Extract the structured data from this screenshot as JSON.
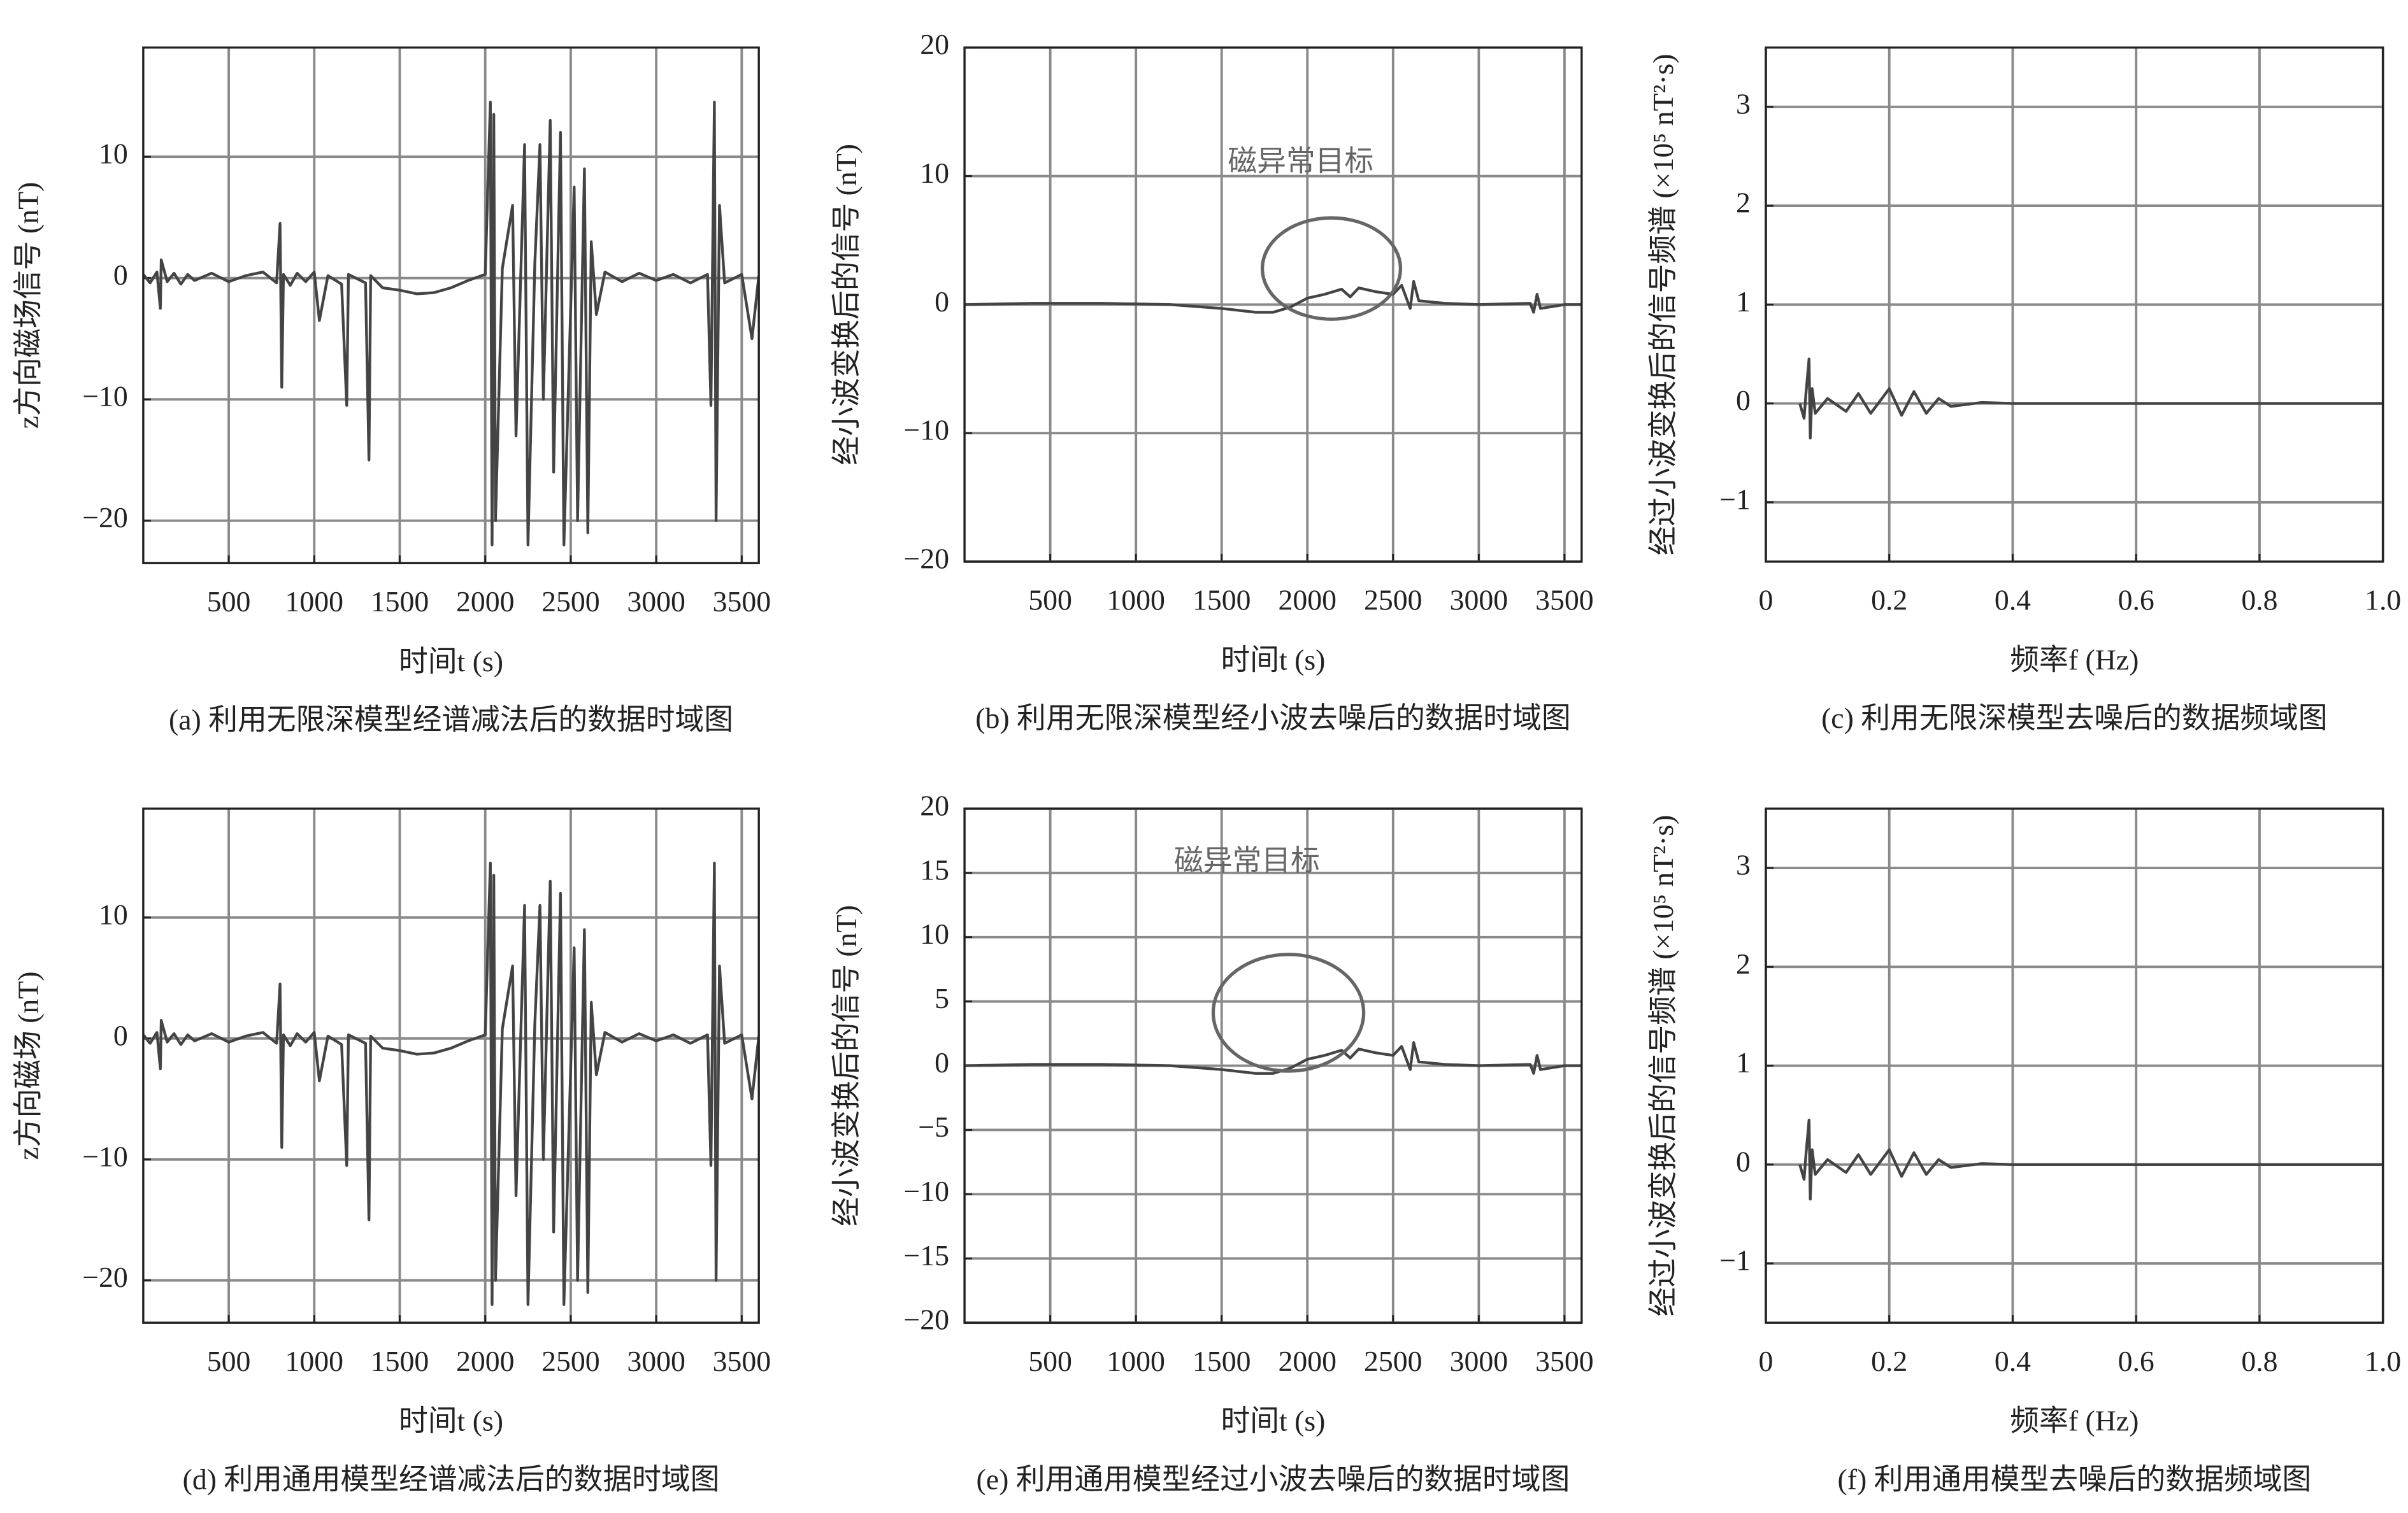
{
  "chart_data": [
    {
      "type": "line",
      "caption": "(a) 利用无限深模型经谱减法后的数据时域图",
      "xlabel": "时间t (s)",
      "ylabel": "z方向磁场信号 (nT)",
      "xlim": [
        0,
        3600
      ],
      "xticks": [
        500,
        1000,
        1500,
        2000,
        2500,
        3000,
        3500
      ],
      "ylim": [
        -23.5,
        19
      ],
      "yticks": [
        {
          "value": -20,
          "label": "−20"
        },
        {
          "value": -10,
          "label": "−10"
        },
        0,
        10
      ],
      "grid": true,
      "series": [
        {
          "color": "#444444",
          "x": [
            0,
            40,
            80,
            100,
            105,
            140,
            180,
            220,
            260,
            300,
            400,
            500,
            600,
            700,
            780,
            800,
            810,
            820,
            860,
            900,
            950,
            1000,
            1030,
            1080,
            1160,
            1190,
            1200,
            1300,
            1320,
            1330,
            1400,
            1500,
            1600,
            1700,
            1800,
            1900,
            2000,
            2030,
            2040,
            2050,
            2060,
            2100,
            2160,
            2180,
            2230,
            2250,
            2290,
            2320,
            2340,
            2380,
            2400,
            2440,
            2460,
            2520,
            2540,
            2580,
            2600,
            2620,
            2650,
            2700,
            2800,
            2900,
            3000,
            3100,
            3200,
            3300,
            3320,
            3340,
            3350,
            3370,
            3400,
            3500,
            3560,
            3600
          ],
          "values": [
            0.3,
            -0.4,
            0.5,
            -2.5,
            1.5,
            -0.3,
            0.4,
            -0.5,
            0.3,
            -0.2,
            0.4,
            -0.3,
            0.2,
            0.5,
            -0.4,
            4.5,
            -9,
            0.3,
            -0.6,
            0.4,
            -0.3,
            0.5,
            -3.5,
            0.2,
            -0.5,
            -10.5,
            0.3,
            -0.4,
            -15,
            0.2,
            -0.8,
            -1,
            -1.3,
            -1.2,
            -0.8,
            -0.2,
            0.3,
            14.5,
            -22,
            13.5,
            -20,
            0.8,
            6,
            -13,
            11,
            -22,
            1.2,
            11,
            -10,
            13,
            -16,
            12,
            -22,
            7.5,
            -20,
            9,
            -21,
            3,
            -3,
            0.5,
            -0.3,
            0.4,
            -0.2,
            0.3,
            -0.4,
            0.3,
            -10.5,
            14.5,
            -20,
            6,
            -0.4,
            0.3,
            -5,
            0.2
          ]
        }
      ]
    },
    {
      "type": "line",
      "caption": "(b) 利用无限深模型经小波去噪后的数据时域图",
      "xlabel": "时间t (s)",
      "ylabel": "经小波变换后的信号 (nT)",
      "annotation": "磁异常目标",
      "xlim": [
        0,
        3600
      ],
      "xticks": [
        500,
        1000,
        1500,
        2000,
        2500,
        3000,
        3500
      ],
      "ylim": [
        -20,
        20
      ],
      "yticks": [
        {
          "value": -20,
          "label": "−20"
        },
        {
          "value": -10,
          "label": "−10"
        },
        0,
        10,
        20
      ],
      "grid": true,
      "series": [
        {
          "color": "#444444",
          "x": [
            0,
            400,
            800,
            1200,
            1500,
            1700,
            1800,
            1900,
            2000,
            2100,
            2200,
            2250,
            2300,
            2400,
            2500,
            2550,
            2600,
            2620,
            2650,
            2800,
            3000,
            3300,
            3320,
            3340,
            3360,
            3500,
            3600
          ],
          "values": [
            0,
            0.1,
            0.1,
            0,
            -0.3,
            -0.6,
            -0.6,
            -0.2,
            0.5,
            0.8,
            1.2,
            0.6,
            1.3,
            1,
            0.8,
            1.5,
            -0.3,
            1.8,
            0.3,
            0.1,
            0,
            0.1,
            -0.6,
            0.8,
            -0.3,
            0,
            0
          ]
        }
      ]
    },
    {
      "type": "line",
      "caption": "(c) 利用无限深模型去噪后的数据频域图",
      "xlabel": "频率f (Hz)",
      "ylabel": "经过小波变换后的信号频谱 (×10⁵ nT²·s)",
      "xlim": [
        0,
        1
      ],
      "xticks": [
        0,
        0.2,
        0.4,
        0.6,
        0.8,
        {
          "value": 1,
          "label": "1.0"
        }
      ],
      "ylim": [
        -1.6,
        3.6
      ],
      "yticks": [
        {
          "value": -1,
          "label": "−1"
        },
        0,
        1,
        2,
        3
      ],
      "grid": true,
      "series": [
        {
          "color": "#444444",
          "x": [
            0.055,
            0.062,
            0.065,
            0.07,
            0.072,
            0.075,
            0.08,
            0.1,
            0.13,
            0.15,
            0.17,
            0.2,
            0.22,
            0.24,
            0.26,
            0.28,
            0.3,
            0.35,
            0.4,
            1
          ],
          "values": [
            0,
            -0.15,
            0.1,
            0.45,
            -0.35,
            0.15,
            -0.1,
            0.05,
            -0.08,
            0.1,
            -0.1,
            0.15,
            -0.12,
            0.12,
            -0.1,
            0.05,
            -0.03,
            0.01,
            0,
            0
          ]
        }
      ]
    },
    {
      "type": "line",
      "caption": "(d) 利用通用模型经谱减法后的数据时域图",
      "xlabel": "时间t (s)",
      "ylabel": "z方向磁场 (nT)",
      "xlim": [
        0,
        3600
      ],
      "xticks": [
        500,
        1000,
        1500,
        2000,
        2500,
        3000,
        3500
      ],
      "ylim": [
        -23.5,
        19
      ],
      "yticks": [
        {
          "value": -20,
          "label": "−20"
        },
        {
          "value": -10,
          "label": "−10"
        },
        0,
        10
      ],
      "grid": true,
      "series": [
        {
          "color": "#444444",
          "x": [
            0,
            40,
            80,
            100,
            105,
            140,
            180,
            220,
            260,
            300,
            400,
            500,
            600,
            700,
            780,
            800,
            810,
            820,
            860,
            900,
            950,
            1000,
            1030,
            1080,
            1160,
            1190,
            1200,
            1300,
            1320,
            1330,
            1400,
            1500,
            1600,
            1700,
            1800,
            1900,
            2000,
            2030,
            2040,
            2050,
            2060,
            2100,
            2160,
            2180,
            2230,
            2250,
            2290,
            2320,
            2340,
            2380,
            2400,
            2440,
            2460,
            2520,
            2540,
            2580,
            2600,
            2620,
            2650,
            2700,
            2800,
            2900,
            3000,
            3100,
            3200,
            3300,
            3320,
            3340,
            3350,
            3370,
            3400,
            3500,
            3560,
            3600
          ],
          "values": [
            0.3,
            -0.4,
            0.5,
            -2.5,
            1.5,
            -0.3,
            0.4,
            -0.5,
            0.3,
            -0.2,
            0.4,
            -0.3,
            0.2,
            0.5,
            -0.4,
            4.5,
            -9,
            0.3,
            -0.6,
            0.4,
            -0.3,
            0.5,
            -3.5,
            0.2,
            -0.5,
            -10.5,
            0.3,
            -0.4,
            -15,
            0.2,
            -0.8,
            -1,
            -1.3,
            -1.2,
            -0.8,
            -0.2,
            0.3,
            14.5,
            -22,
            13.5,
            -20,
            0.8,
            6,
            -13,
            11,
            -22,
            1.2,
            11,
            -10,
            13,
            -16,
            12,
            -22,
            7.5,
            -20,
            9,
            -21,
            3,
            -3,
            0.5,
            -0.3,
            0.4,
            -0.2,
            0.3,
            -0.4,
            0.3,
            -10.5,
            14.5,
            -20,
            6,
            -0.4,
            0.3,
            -5,
            0.2
          ]
        }
      ]
    },
    {
      "type": "line",
      "caption": "(e) 利用通用模型经过小波去噪后的数据时域图",
      "xlabel": "时间t (s)",
      "ylabel": "经小波变换后的信号 (nT)",
      "annotation": "磁异常目标",
      "xlim": [
        0,
        3600
      ],
      "xticks": [
        500,
        1000,
        1500,
        2000,
        2500,
        3000,
        3500
      ],
      "ylim": [
        -20,
        20
      ],
      "yticks": [
        {
          "value": -20,
          "label": "−20"
        },
        {
          "value": -15,
          "label": "−15"
        },
        {
          "value": -10,
          "label": "−10"
        },
        {
          "value": -5,
          "label": "−5"
        },
        0,
        5,
        10,
        15,
        20
      ],
      "grid": true,
      "series": [
        {
          "color": "#444444",
          "x": [
            0,
            400,
            800,
            1200,
            1500,
            1700,
            1800,
            1900,
            2000,
            2100,
            2200,
            2250,
            2300,
            2400,
            2500,
            2550,
            2600,
            2620,
            2650,
            2800,
            3000,
            3300,
            3320,
            3340,
            3360,
            3500,
            3600
          ],
          "values": [
            0,
            0.1,
            0.1,
            0,
            -0.3,
            -0.6,
            -0.6,
            -0.2,
            0.5,
            0.8,
            1.2,
            0.6,
            1.3,
            1,
            0.8,
            1.5,
            -0.3,
            1.8,
            0.3,
            0.1,
            0,
            0.1,
            -0.6,
            0.8,
            -0.3,
            0,
            0
          ]
        }
      ]
    },
    {
      "type": "line",
      "caption": "(f) 利用通用模型去噪后的数据频域图",
      "xlabel": "频率f (Hz)",
      "ylabel": "经过小波变换后的信号频谱 (×10⁵ nT²·s)",
      "xlim": [
        0,
        1
      ],
      "xticks": [
        0,
        0.2,
        0.4,
        0.6,
        0.8,
        {
          "value": 1,
          "label": "1.0"
        }
      ],
      "ylim": [
        -1.6,
        3.6
      ],
      "yticks": [
        {
          "value": -1,
          "label": "−1"
        },
        0,
        1,
        2,
        3
      ],
      "grid": true,
      "series": [
        {
          "color": "#444444",
          "x": [
            0.055,
            0.062,
            0.065,
            0.07,
            0.072,
            0.075,
            0.08,
            0.1,
            0.13,
            0.15,
            0.17,
            0.2,
            0.22,
            0.24,
            0.26,
            0.28,
            0.3,
            0.35,
            0.4,
            1
          ],
          "values": [
            0,
            -0.15,
            0.1,
            0.45,
            -0.35,
            0.15,
            -0.1,
            0.05,
            -0.08,
            0.1,
            -0.1,
            0.15,
            -0.12,
            0.12,
            -0.1,
            0.05,
            -0.03,
            0.01,
            0,
            0
          ]
        }
      ]
    }
  ]
}
